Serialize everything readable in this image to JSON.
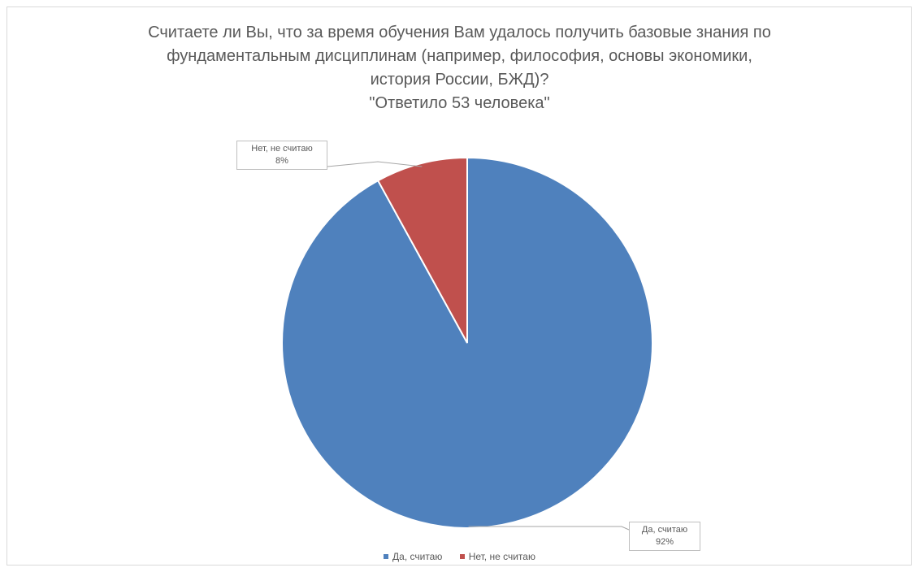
{
  "chart_data": {
    "type": "pie",
    "title": [
      "Считаете ли Вы, что за время обучения Вам удалось получить базовые знания по",
      "фундаментальным дисциплинам (например, философия, основы экономики,",
      "история России, БЖД)?",
      "\"Ответило 53 человека\""
    ],
    "categories": [
      "Да, считаю",
      "Нет, не считаю"
    ],
    "values": [
      92,
      8
    ],
    "value_labels": [
      "92%",
      "8%"
    ],
    "colors": [
      "#4f81bd",
      "#c0504d"
    ],
    "legend_position": "bottom",
    "start_angle": "12 o'clock",
    "direction": "clockwise"
  }
}
